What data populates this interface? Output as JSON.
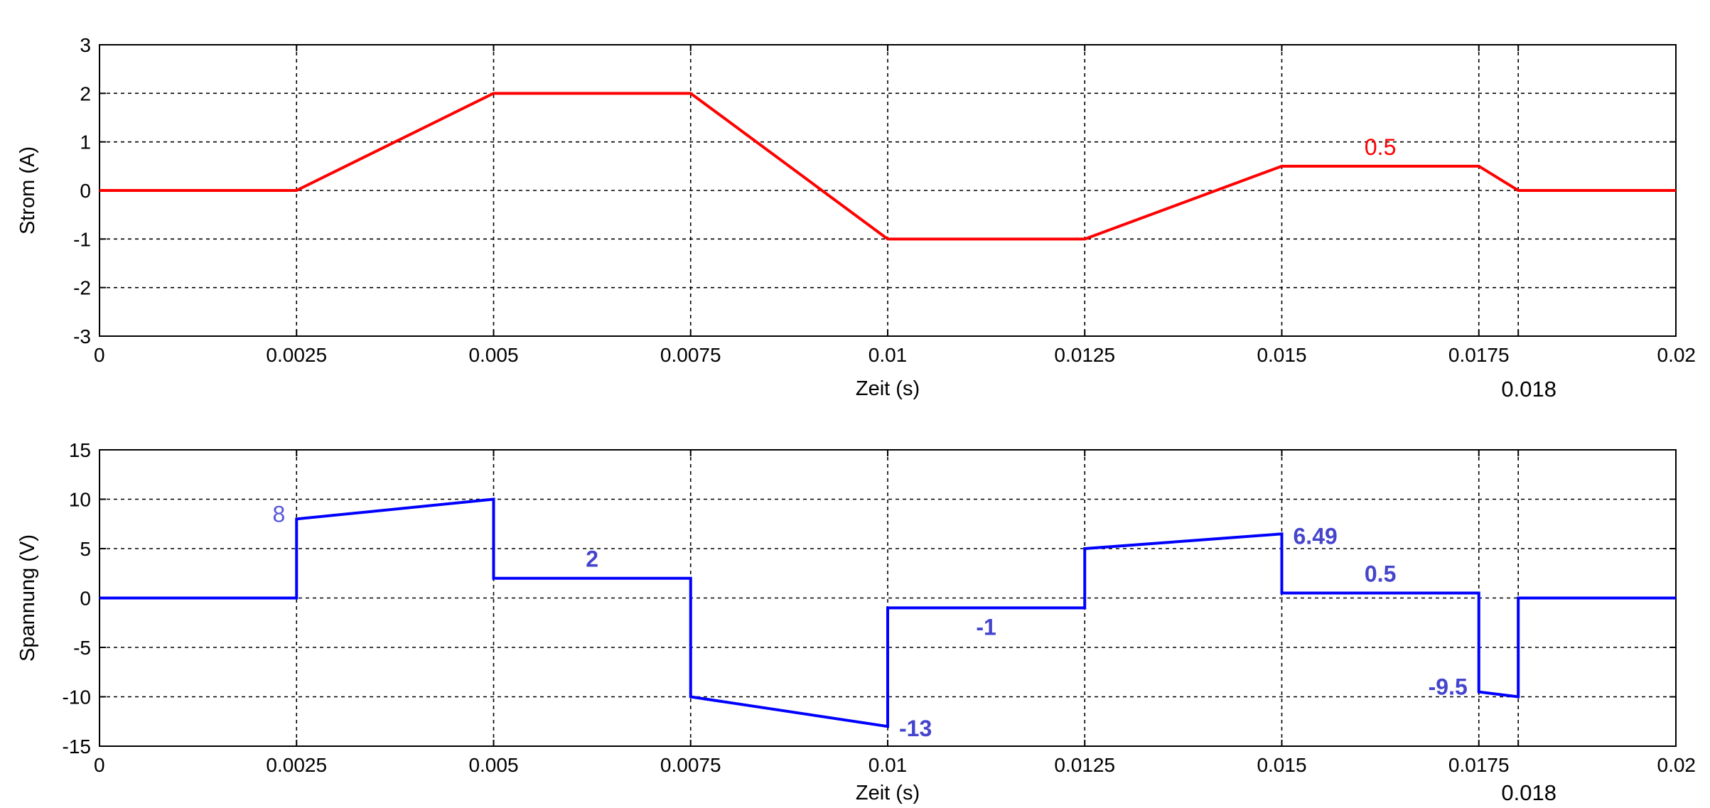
{
  "chart_data": [
    {
      "type": "line",
      "title": "",
      "xlabel": "Zeit (s)",
      "ylabel": "Strom (A)",
      "xlim": [
        0,
        0.02
      ],
      "ylim": [
        -3,
        3
      ],
      "xticks": [
        "0",
        "0.0025",
        "0.005",
        "0.0075",
        "0.01",
        "0.0125",
        "0.015",
        "0.0175",
        "0.02"
      ],
      "yticks": [
        "3",
        "2",
        "1",
        "0",
        "-1",
        "-2",
        "-3"
      ],
      "grid": true,
      "extra_xtick": {
        "value": 0.018,
        "label": "0.018"
      },
      "color": "#ff0000",
      "series": [
        {
          "x": [
            0,
            0.0025,
            0.005,
            0.0075,
            0.01,
            0.0125,
            0.015,
            0.0175,
            0.018,
            0.02
          ],
          "y": [
            0,
            0,
            2,
            2,
            -1,
            -1,
            0.5,
            0.5,
            0,
            0
          ]
        }
      ],
      "annotations": [
        {
          "text": "0.5",
          "x": 0.01625,
          "y": 0.5,
          "color": "#ff0000",
          "bold": false
        }
      ]
    },
    {
      "type": "line",
      "title": "",
      "xlabel": "Zeit (s)",
      "ylabel": "Spannung (V)",
      "xlim": [
        0,
        0.02
      ],
      "ylim": [
        -15,
        15
      ],
      "xticks": [
        "0",
        "0.0025",
        "0.005",
        "0.0075",
        "0.01",
        "0.0125",
        "0.015",
        "0.0175",
        "0.02"
      ],
      "yticks": [
        "15",
        "10",
        "5",
        "0",
        "-5",
        "-10",
        "-15"
      ],
      "grid": true,
      "extra_xtick": {
        "value": 0.018,
        "label": "0.018"
      },
      "color": "#0000ff",
      "series": [
        {
          "x": [
            0,
            0.0025,
            0.0025,
            0.005,
            0.005,
            0.0075,
            0.0075,
            0.01,
            0.01,
            0.0125,
            0.0125,
            0.015,
            0.015,
            0.0175,
            0.0175,
            0.018,
            0.018,
            0.02
          ],
          "y": [
            0,
            0,
            8,
            10,
            2,
            2,
            -10,
            -13,
            -1,
            -1,
            5,
            6.49,
            0.5,
            0.5,
            -9.5,
            -10,
            0,
            0
          ]
        }
      ],
      "annotations": [
        {
          "text": "8",
          "x": 0.0025,
          "y": 8,
          "color": "#5555dd",
          "bold": false,
          "pos": "left"
        },
        {
          "text": "2",
          "x": 0.00625,
          "y": 2,
          "color": "#4444cc",
          "bold": true,
          "pos": "above"
        },
        {
          "text": "-13",
          "x": 0.01,
          "y": -13,
          "color": "#4444cc",
          "bold": true,
          "pos": "right"
        },
        {
          "text": "-1",
          "x": 0.01125,
          "y": -1,
          "color": "#4444cc",
          "bold": true,
          "pos": "below"
        },
        {
          "text": "6.49",
          "x": 0.015,
          "y": 6.49,
          "color": "#4444cc",
          "bold": true,
          "pos": "right"
        },
        {
          "text": "0.5",
          "x": 0.01625,
          "y": 0.5,
          "color": "#4444cc",
          "bold": true,
          "pos": "above"
        },
        {
          "text": "-9.5",
          "x": 0.0175,
          "y": -9.5,
          "color": "#4444cc",
          "bold": true,
          "pos": "left"
        }
      ]
    }
  ]
}
